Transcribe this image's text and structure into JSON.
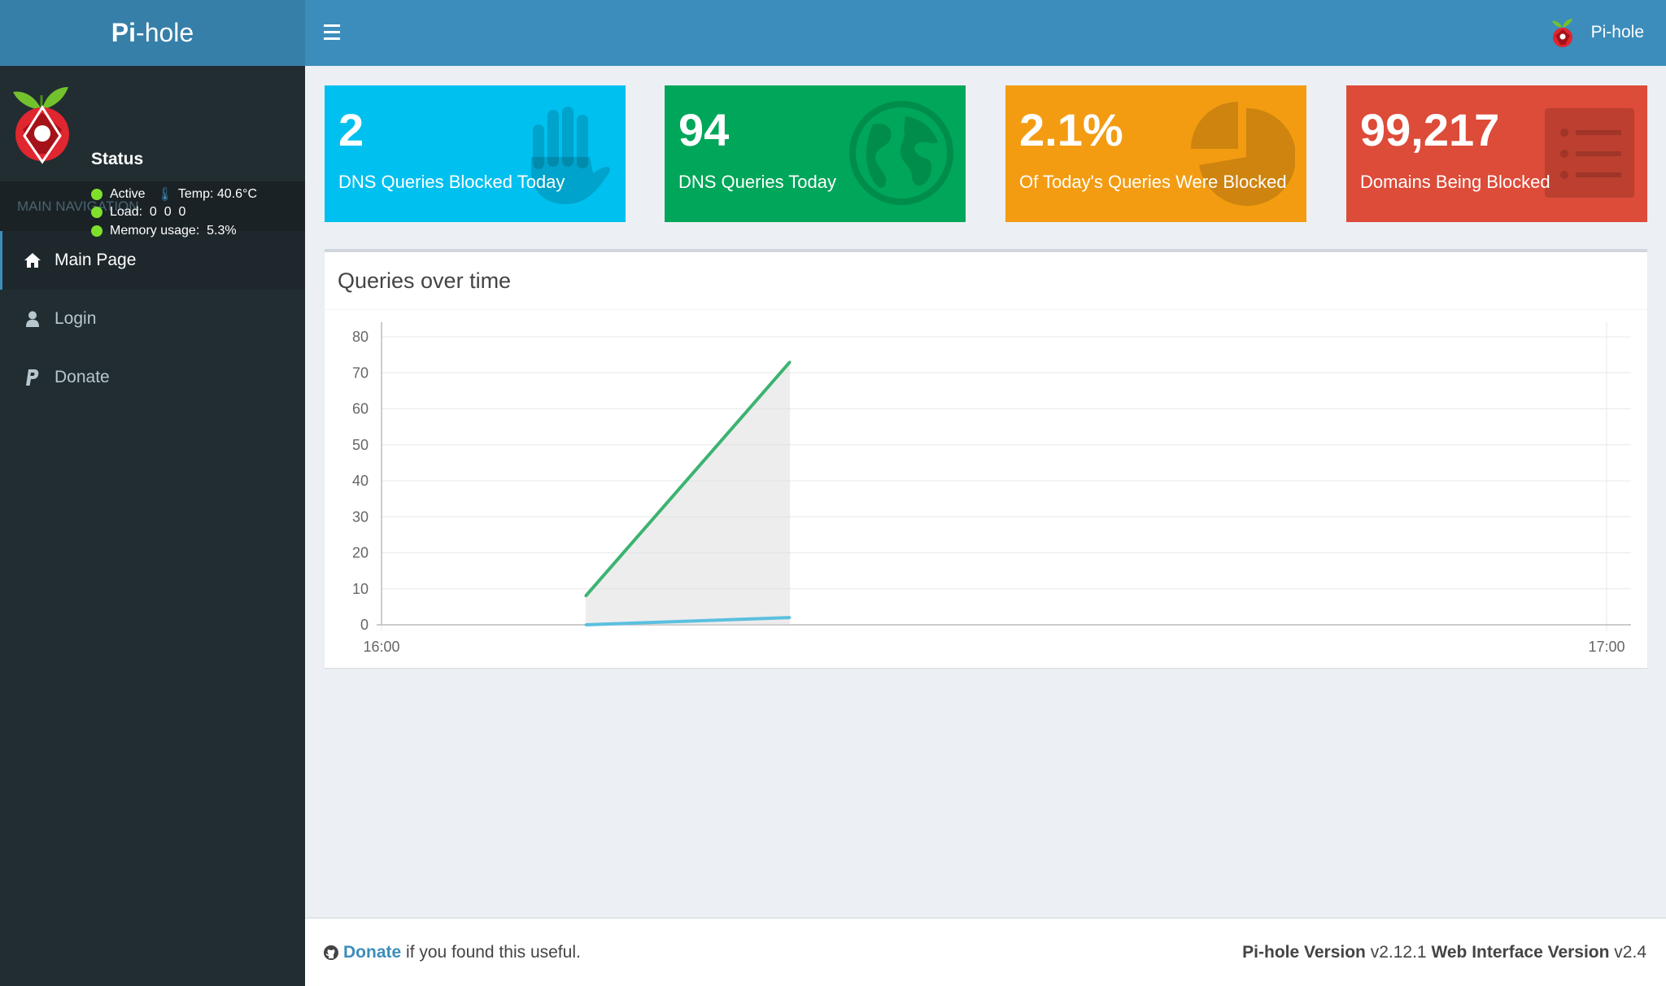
{
  "brand": {
    "bold": "Pi",
    "rest": "-hole"
  },
  "user_panel": {
    "status_title": "Status",
    "active_label": "Active",
    "temp_label": "Temp: 40.6°C",
    "load_label": "Load:  0  0  0",
    "memory_label": "Memory usage:  5.3%",
    "indicator_color": "#7fe02c"
  },
  "nav": {
    "header": "MAIN NAVIGATION",
    "items": [
      {
        "label": "Main Page",
        "icon": "home-icon",
        "active": true
      },
      {
        "label": "Login",
        "icon": "user-icon",
        "active": false
      },
      {
        "label": "Donate",
        "icon": "paypal-icon",
        "active": false
      }
    ]
  },
  "topbar": {
    "user_label": "Pi-hole"
  },
  "stats": [
    {
      "value": "2",
      "label": "DNS Queries Blocked Today",
      "color": "#00c0ef",
      "icon": "hand-icon"
    },
    {
      "value": "94",
      "label": "DNS Queries Today",
      "color": "#00a65a",
      "icon": "globe-icon"
    },
    {
      "value": "2.1%",
      "label": "Of Today's Queries Were Blocked",
      "color": "#f39c12",
      "icon": "pie-chart-icon"
    },
    {
      "value": "99,217",
      "label": "Domains Being Blocked",
      "color": "#dd4b39",
      "icon": "list-icon"
    }
  ],
  "chart_title": "Queries over time",
  "chart_data": {
    "type": "line",
    "title": "",
    "xlabel": "",
    "ylabel": "",
    "ylim": [
      0,
      80
    ],
    "yticks": [
      "0",
      "10",
      "20",
      "30",
      "40",
      "50",
      "60",
      "70",
      "80"
    ],
    "xticks": [
      "16:00",
      "17:00"
    ],
    "x": [
      "16:10",
      "16:20"
    ],
    "series": [
      {
        "values": [
          8,
          73
        ],
        "color": "#3cb371"
      },
      {
        "values": [
          0,
          2
        ],
        "color": "#5bc0de"
      }
    ],
    "grid": true
  },
  "footer": {
    "donate_link": "Donate",
    "donate_suffix": " if you found this useful.",
    "pihole_version_label": "Pi-hole Version",
    "pihole_version": " v2.12.1 ",
    "web_version_label": "Web Interface Version",
    "web_version": " v2.4"
  }
}
